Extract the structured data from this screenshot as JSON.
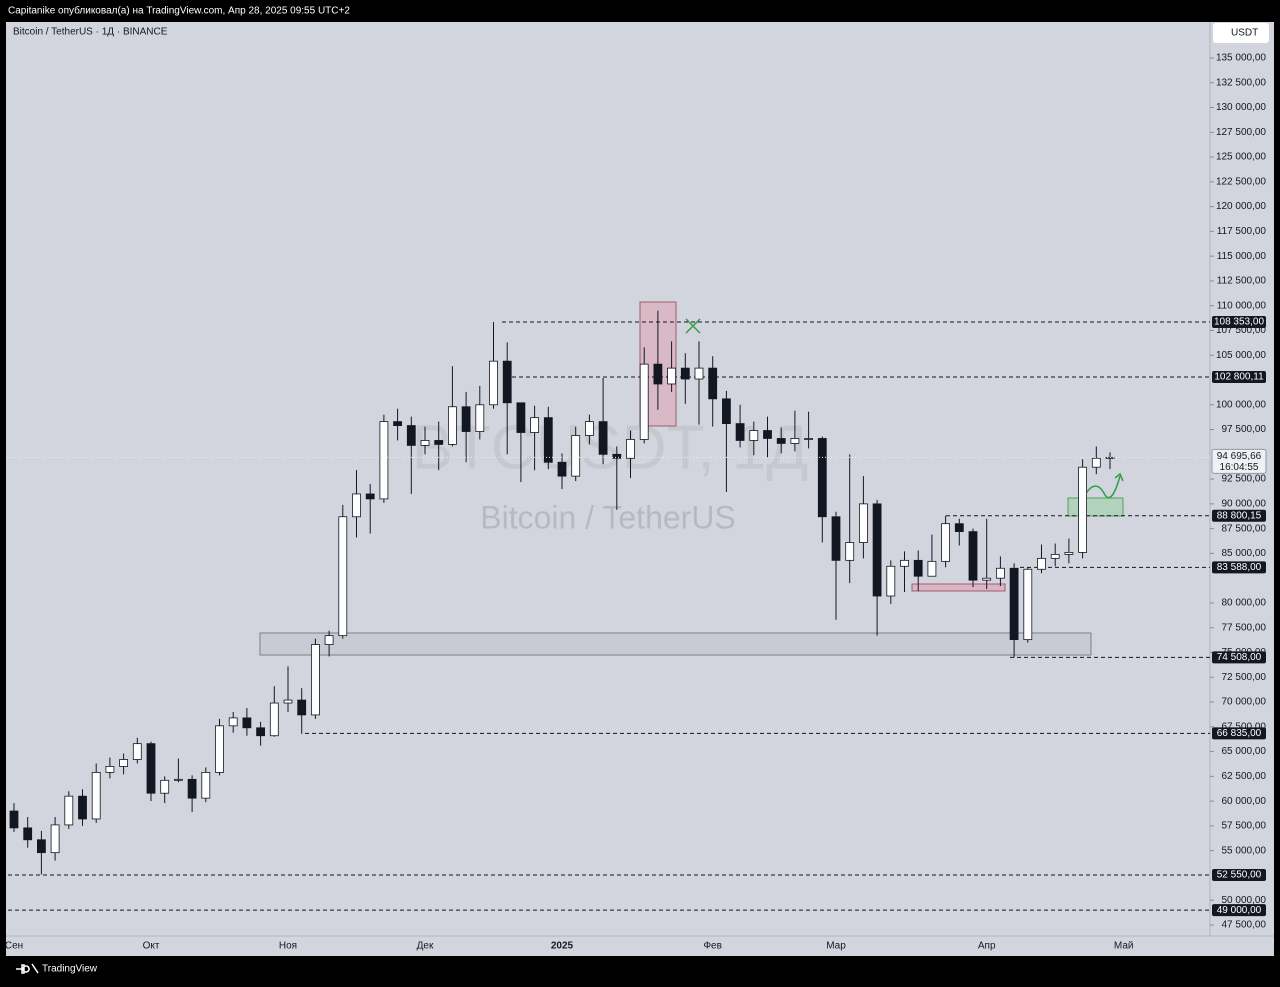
{
  "header": {
    "publisher": "Capitanike опубликовал(а) на TradingView.com, Апр 28, 2025 09:55 UTC+2",
    "symbol": "Bitcoin / TetherUS · 1Д · BINANCE",
    "currency": "USDT"
  },
  "footer": {
    "brand": "TradingView"
  },
  "chart_data": {
    "type": "candlestick",
    "watermark": "BTCUSDT, 1Д",
    "watermark_subtitle": "Bitcoin / TetherUS",
    "up_color": "#ffffff",
    "down_color": "#131722",
    "outline_color": "#131722",
    "categories": [
      "Сен",
      null,
      null,
      null,
      null,
      null,
      null,
      null,
      null,
      null,
      "Окт",
      null,
      null,
      null,
      null,
      null,
      null,
      null,
      null,
      null,
      "Ноя",
      null,
      null,
      null,
      null,
      null,
      null,
      null,
      null,
      null,
      "Дек",
      null,
      null,
      null,
      null,
      null,
      null,
      null,
      null,
      null,
      "2025",
      null,
      null,
      null,
      null,
      null,
      null,
      null,
      null,
      null,
      null,
      "Фев",
      null,
      null,
      null,
      null,
      null,
      null,
      null,
      null,
      "Мар",
      null,
      null,
      null,
      null,
      null,
      null,
      null,
      null,
      null,
      null,
      "Апр",
      null,
      null,
      null,
      null,
      null,
      null,
      null,
      null,
      null,
      "Май"
    ],
    "open": [
      59000,
      57300,
      56100,
      54800,
      57600,
      60500,
      58200,
      62900,
      63500,
      64200,
      65800,
      60800,
      62100,
      62200,
      60300,
      62900,
      67600,
      68400,
      67400,
      66600,
      69900,
      70200,
      68700,
      75800,
      76700,
      88700,
      91000,
      90500,
      98300,
      97900,
      95900,
      96400,
      96000,
      99800,
      97300,
      100000,
      104400,
      100200,
      97200,
      98700,
      94200,
      92800,
      96900,
      98300,
      95000,
      94600,
      96500,
      104100,
      102100,
      103700,
      102600,
      103700,
      100600,
      98100,
      96400,
      97400,
      96600,
      96100,
      96600,
      96600,
      88700,
      84300,
      86100,
      90000,
      80700,
      83700,
      84300,
      82700,
      84200,
      88000,
      87200,
      82300,
      82500,
      83500,
      76300,
      83400,
      84500,
      84900,
      85100,
      93700,
      94600,
      null
    ],
    "high": [
      59800,
      58400,
      57000,
      58400,
      61000,
      61200,
      63800,
      64400,
      64800,
      66400,
      66000,
      62500,
      64300,
      62600,
      63400,
      68300,
      69000,
      69400,
      68000,
      71600,
      73600,
      71400,
      76400,
      77200,
      89900,
      93400,
      92000,
      99000,
      99600,
      98800,
      97800,
      98300,
      103900,
      101300,
      101900,
      108353,
      106300,
      99500,
      99900,
      99800,
      95100,
      97800,
      99000,
      102700,
      95800,
      97400,
      105800,
      109500,
      106400,
      105200,
      106400,
      104900,
      101400,
      100000,
      98300,
      98800,
      97700,
      99400,
      99300,
      96800,
      89200,
      95000,
      92800,
      90400,
      84300,
      85200,
      85300,
      86900,
      88800,
      88500,
      87500,
      88500,
      84700,
      84000,
      83600,
      85900,
      86000,
      86500,
      94500,
      95800,
      95200,
      null
    ],
    "low": [
      56900,
      55300,
      52600,
      54000,
      57200,
      57500,
      57800,
      62300,
      62700,
      63800,
      60000,
      59800,
      61900,
      58900,
      59900,
      62600,
      66900,
      66600,
      65600,
      66500,
      69000,
      66800,
      68300,
      74600,
      76400,
      86600,
      87000,
      90100,
      96400,
      91000,
      95000,
      93400,
      95800,
      94200,
      96500,
      99600,
      95000,
      92200,
      93400,
      93500,
      91500,
      92300,
      96000,
      94000,
      89400,
      92600,
      96100,
      99500,
      101300,
      100100,
      98000,
      97800,
      91200,
      95700,
      94900,
      94700,
      95100,
      95300,
      95600,
      86100,
      78300,
      82000,
      84500,
      76700,
      79900,
      81100,
      81200,
      83600,
      83600,
      85800,
      81600,
      81400,
      81700,
      74508,
      76000,
      83000,
      83700,
      84000,
      84500,
      93000,
      93500,
      null
    ],
    "close": [
      57300,
      56100,
      54800,
      57600,
      60500,
      58200,
      62900,
      63500,
      64200,
      65800,
      60800,
      62100,
      62200,
      60300,
      62900,
      67600,
      68400,
      67400,
      66600,
      69900,
      70200,
      68700,
      75800,
      76700,
      88700,
      91000,
      90500,
      98300,
      97900,
      95900,
      96400,
      96000,
      99800,
      97300,
      100000,
      104400,
      100200,
      97200,
      98700,
      94200,
      92800,
      96900,
      98300,
      95000,
      94600,
      96500,
      104100,
      102100,
      103700,
      102600,
      103700,
      100600,
      98100,
      96400,
      97400,
      96600,
      96100,
      96600,
      96600,
      88700,
      84300,
      86100,
      90000,
      80700,
      83700,
      84300,
      82700,
      84200,
      88000,
      87200,
      82300,
      82500,
      83500,
      76300,
      83400,
      84500,
      84900,
      85100,
      93700,
      94600,
      94695.66,
      null
    ],
    "ylim": [
      46490,
      138630
    ],
    "yticks": [
      {
        "value": 135000,
        "label": "135 000,00"
      },
      {
        "value": 132500,
        "label": "132 500,00"
      },
      {
        "value": 130000,
        "label": "130 000,00"
      },
      {
        "value": 127500,
        "label": "127 500,00"
      },
      {
        "value": 125000,
        "label": "125 000,00"
      },
      {
        "value": 122500,
        "label": "122 500,00"
      },
      {
        "value": 120000,
        "label": "120 000,00"
      },
      {
        "value": 117500,
        "label": "117 500,00"
      },
      {
        "value": 115000,
        "label": "115 000,00"
      },
      {
        "value": 112500,
        "label": "112 500,00"
      },
      {
        "value": 110000,
        "label": "110 000,00"
      },
      {
        "value": 107500,
        "label": "107 500,00"
      },
      {
        "value": 105000,
        "label": "105 000,00"
      },
      {
        "value": 100000,
        "label": "100 000,00"
      },
      {
        "value": 97500,
        "label": "97 500,00"
      },
      {
        "value": 92500,
        "label": "92 500,00"
      },
      {
        "value": 90000,
        "label": "90 000,00"
      },
      {
        "value": 87500,
        "label": "87 500,00"
      },
      {
        "value": 85000,
        "label": "85 000,00"
      },
      {
        "value": 80000,
        "label": "80 000,00"
      },
      {
        "value": 77500,
        "label": "77 500,00"
      },
      {
        "value": 75000,
        "label": "75 000,00"
      },
      {
        "value": 72500,
        "label": "72 500,00"
      },
      {
        "value": 70000,
        "label": "70 000,00"
      },
      {
        "value": 67500,
        "label": "67 500,00"
      },
      {
        "value": 65000,
        "label": "65 000,00"
      },
      {
        "value": 62500,
        "label": "62 500,00"
      },
      {
        "value": 60000,
        "label": "60 000,00"
      },
      {
        "value": 57500,
        "label": "57 500,00"
      },
      {
        "value": 55000,
        "label": "55 000,00"
      },
      {
        "value": 50000,
        "label": "50 000,00"
      },
      {
        "value": 47500,
        "label": "47 500,00"
      }
    ],
    "levels": [
      {
        "value": 108353,
        "label": "108 353,00"
      },
      {
        "value": 102800.11,
        "label": "102 800,11"
      },
      {
        "value": 88800.15,
        "label": "88 800,15"
      },
      {
        "value": 83588,
        "label": "83 588,00"
      },
      {
        "value": 74508,
        "label": "74 508,00"
      },
      {
        "value": 66835,
        "label": "66 835,00"
      },
      {
        "value": 52550,
        "label": "52 550,00"
      },
      {
        "value": 49000,
        "label": "49 000,00"
      }
    ],
    "last_price": {
      "value": 94695.66,
      "label": "94 695,66"
    },
    "countdown": "16:04:55",
    "grid": false
  }
}
